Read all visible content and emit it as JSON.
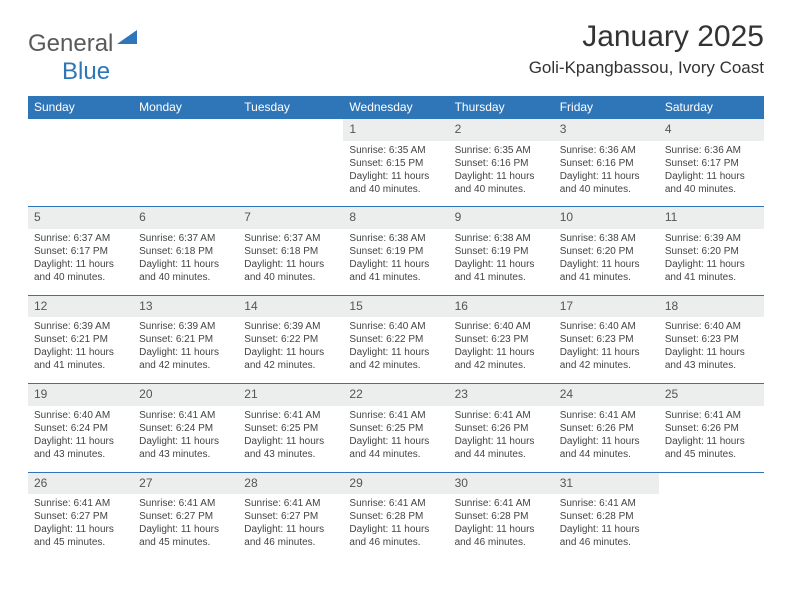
{
  "logo": {
    "word1": "General",
    "word2": "Blue",
    "accent_color": "#2f76b9",
    "text_color": "#5a5a5a"
  },
  "title": "January 2025",
  "location": "Goli-Kpangbassou, Ivory Coast",
  "header_bg": "#2f76b9",
  "header_text": "#ffffff",
  "daynum_bg": "#eceded",
  "day_names": [
    "Sunday",
    "Monday",
    "Tuesday",
    "Wednesday",
    "Thursday",
    "Friday",
    "Saturday"
  ],
  "weeks": [
    [
      null,
      null,
      null,
      {
        "n": "1",
        "rise": "6:35 AM",
        "set": "6:15 PM",
        "d": "11 hours and 40 minutes."
      },
      {
        "n": "2",
        "rise": "6:35 AM",
        "set": "6:16 PM",
        "d": "11 hours and 40 minutes."
      },
      {
        "n": "3",
        "rise": "6:36 AM",
        "set": "6:16 PM",
        "d": "11 hours and 40 minutes."
      },
      {
        "n": "4",
        "rise": "6:36 AM",
        "set": "6:17 PM",
        "d": "11 hours and 40 minutes."
      }
    ],
    [
      {
        "n": "5",
        "rise": "6:37 AM",
        "set": "6:17 PM",
        "d": "11 hours and 40 minutes."
      },
      {
        "n": "6",
        "rise": "6:37 AM",
        "set": "6:18 PM",
        "d": "11 hours and 40 minutes."
      },
      {
        "n": "7",
        "rise": "6:37 AM",
        "set": "6:18 PM",
        "d": "11 hours and 40 minutes."
      },
      {
        "n": "8",
        "rise": "6:38 AM",
        "set": "6:19 PM",
        "d": "11 hours and 41 minutes."
      },
      {
        "n": "9",
        "rise": "6:38 AM",
        "set": "6:19 PM",
        "d": "11 hours and 41 minutes."
      },
      {
        "n": "10",
        "rise": "6:38 AM",
        "set": "6:20 PM",
        "d": "11 hours and 41 minutes."
      },
      {
        "n": "11",
        "rise": "6:39 AM",
        "set": "6:20 PM",
        "d": "11 hours and 41 minutes."
      }
    ],
    [
      {
        "n": "12",
        "rise": "6:39 AM",
        "set": "6:21 PM",
        "d": "11 hours and 41 minutes."
      },
      {
        "n": "13",
        "rise": "6:39 AM",
        "set": "6:21 PM",
        "d": "11 hours and 42 minutes."
      },
      {
        "n": "14",
        "rise": "6:39 AM",
        "set": "6:22 PM",
        "d": "11 hours and 42 minutes."
      },
      {
        "n": "15",
        "rise": "6:40 AM",
        "set": "6:22 PM",
        "d": "11 hours and 42 minutes."
      },
      {
        "n": "16",
        "rise": "6:40 AM",
        "set": "6:23 PM",
        "d": "11 hours and 42 minutes."
      },
      {
        "n": "17",
        "rise": "6:40 AM",
        "set": "6:23 PM",
        "d": "11 hours and 42 minutes."
      },
      {
        "n": "18",
        "rise": "6:40 AM",
        "set": "6:23 PM",
        "d": "11 hours and 43 minutes."
      }
    ],
    [
      {
        "n": "19",
        "rise": "6:40 AM",
        "set": "6:24 PM",
        "d": "11 hours and 43 minutes."
      },
      {
        "n": "20",
        "rise": "6:41 AM",
        "set": "6:24 PM",
        "d": "11 hours and 43 minutes."
      },
      {
        "n": "21",
        "rise": "6:41 AM",
        "set": "6:25 PM",
        "d": "11 hours and 43 minutes."
      },
      {
        "n": "22",
        "rise": "6:41 AM",
        "set": "6:25 PM",
        "d": "11 hours and 44 minutes."
      },
      {
        "n": "23",
        "rise": "6:41 AM",
        "set": "6:26 PM",
        "d": "11 hours and 44 minutes."
      },
      {
        "n": "24",
        "rise": "6:41 AM",
        "set": "6:26 PM",
        "d": "11 hours and 44 minutes."
      },
      {
        "n": "25",
        "rise": "6:41 AM",
        "set": "6:26 PM",
        "d": "11 hours and 45 minutes."
      }
    ],
    [
      {
        "n": "26",
        "rise": "6:41 AM",
        "set": "6:27 PM",
        "d": "11 hours and 45 minutes."
      },
      {
        "n": "27",
        "rise": "6:41 AM",
        "set": "6:27 PM",
        "d": "11 hours and 45 minutes."
      },
      {
        "n": "28",
        "rise": "6:41 AM",
        "set": "6:27 PM",
        "d": "11 hours and 46 minutes."
      },
      {
        "n": "29",
        "rise": "6:41 AM",
        "set": "6:28 PM",
        "d": "11 hours and 46 minutes."
      },
      {
        "n": "30",
        "rise": "6:41 AM",
        "set": "6:28 PM",
        "d": "11 hours and 46 minutes."
      },
      {
        "n": "31",
        "rise": "6:41 AM",
        "set": "6:28 PM",
        "d": "11 hours and 46 minutes."
      },
      null
    ]
  ],
  "labels": {
    "sunrise": "Sunrise: ",
    "sunset": "Sunset: ",
    "daylight": "Daylight: "
  }
}
